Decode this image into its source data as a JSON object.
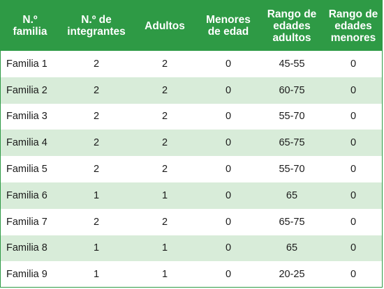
{
  "header": {
    "columns": [
      "N.º\nfamilia",
      "N.º de\nintegrantes",
      "Adultos",
      "Menores\nde edad",
      "Rango de\nedades\nadultos",
      "Rango de\nedades\nmenores"
    ]
  },
  "rows": [
    [
      "Familia 1",
      "2",
      "2",
      "0",
      "45-55",
      "0"
    ],
    [
      "Familia 2",
      "2",
      "2",
      "0",
      "60-75",
      "0"
    ],
    [
      "Familia 3",
      "2",
      "2",
      "0",
      "55-70",
      "0"
    ],
    [
      "Familia 4",
      "2",
      "2",
      "0",
      "65-75",
      "0"
    ],
    [
      "Familia 5",
      "2",
      "2",
      "0",
      "55-70",
      "0"
    ],
    [
      "Familia 6",
      "1",
      "1",
      "0",
      "65",
      "0"
    ],
    [
      "Familia 7",
      "2",
      "2",
      "0",
      "65-75",
      "0"
    ],
    [
      "Familia 8",
      "1",
      "1",
      "0",
      "65",
      "0"
    ],
    [
      "Familia 9",
      "1",
      "1",
      "0",
      "20-25",
      "0"
    ]
  ],
  "colors": {
    "header_bg": "#2e9a45",
    "stripe_bg": "#d8ecd9",
    "border": "#2e9a45"
  }
}
